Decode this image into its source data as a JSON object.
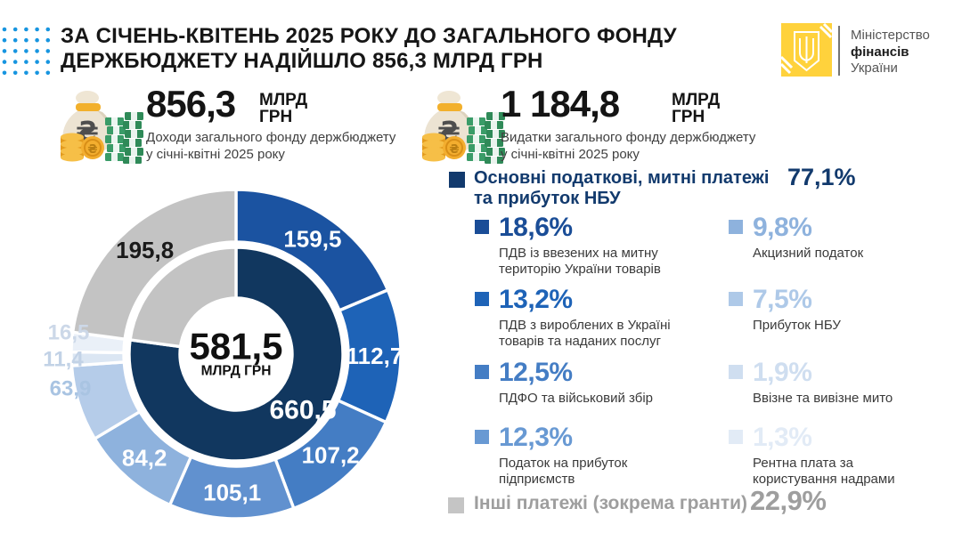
{
  "header": {
    "title_line1": "ЗА СІЧЕНЬ-КВІТЕНЬ 2025 РОКУ ДО ЗАГАЛЬНОГО ФОНДУ",
    "title_line2": "ДЕРЖБЮДЖЕТУ НАДІЙШЛО 856,3 МЛРД ГРН",
    "logo": {
      "line1": "Міністерство",
      "line2": "фінансів",
      "line3": "України",
      "emblem_color": "#ffd23c"
    }
  },
  "icons": {
    "stat_icon": "money-bag-coins",
    "logo_icon": "ukraine-trident-emblem",
    "decor_icon": "blue-dots-grid"
  },
  "decor": {
    "dots": {
      "rows": 5,
      "cols": 5,
      "step": 12.2,
      "radius": 2.3,
      "color": "#1795e0"
    }
  },
  "stats": [
    {
      "value": "856,3",
      "unit_line1": "МЛРД",
      "unit_line2": "ГРН",
      "desc_line1": "Доходи загального фонду держбюджету",
      "desc_line2": "у січні-квітні 2025 року"
    },
    {
      "value": "1 184,8",
      "unit_line1": "МЛРД",
      "unit_line2": "ГРН",
      "desc_line1": "Видатки загального фонду держбюджету",
      "desc_line2": "у січні-квітні 2025 року"
    }
  ],
  "chart_data": {
    "type": "donut",
    "unit": "млрд грн",
    "total": 856.3,
    "center": {
      "value": "581,5",
      "unit": "МЛРД ГРН"
    },
    "outer_ring": [
      {
        "name": "ПДВ із ввезених на митну територію України товарів",
        "value": 159.5,
        "label": "159,5",
        "color": "#1b53a1",
        "label_color": "#ffffff",
        "inside": true
      },
      {
        "name": "ПДВ з вироблених в Україні товарів та наданих послуг",
        "value": 112.7,
        "label": "112,7",
        "color": "#1e63b7",
        "label_color": "#ffffff",
        "inside": true
      },
      {
        "name": "ПДФО та військовий збір",
        "value": 107.2,
        "label": "107,2",
        "color": "#447dc4",
        "label_color": "#ffffff",
        "inside": true
      },
      {
        "name": "Податок на прибуток підприємств",
        "value": 105.1,
        "label": "105,1",
        "color": "#6191cf",
        "label_color": "#ffffff",
        "inside": true
      },
      {
        "name": "Акцизний податок",
        "value": 84.2,
        "label": "84,2",
        "color": "#8eb2dd",
        "label_color": "#ffffff",
        "inside": true
      },
      {
        "name": "Прибуток НБУ",
        "value": 63.9,
        "label": "63,9",
        "color": "#b5cce9",
        "label_color": "#a9c4e2",
        "inside": false,
        "label_pos": [
          39,
          242
        ]
      },
      {
        "name": "Рентна плата за користування надрами",
        "value": 11.4,
        "label": "11,4",
        "color": "#dbe6f3",
        "label_color": "#c2d2e6",
        "inside": false,
        "label_pos": [
          31,
          209
        ]
      },
      {
        "name": "Ввізне та вивізне мито",
        "value": 16.5,
        "label": "16,5",
        "color": "#eaf0f8",
        "label_color": "#ccd8e8",
        "inside": false,
        "label_pos": [
          37,
          179
        ]
      },
      {
        "name": "Інші платежі (зокрема гранти)",
        "value": 195.8,
        "label": "195,8",
        "color": "#c3c3c3",
        "label_color": "#1a1a1a",
        "inside": true
      }
    ],
    "inner_ring": [
      {
        "name": "Основні податкові, митні платежі та прибуток НБУ",
        "value": 660.5,
        "label": "660,5",
        "color": "#11375f",
        "label_color": "#ffffff",
        "label_pos": [
          300,
          266
        ]
      },
      {
        "name": "Інші платежі (зокрема гранти)",
        "value": 195.8,
        "label": "",
        "color": "#c3c3c3",
        "label_color": "",
        "label_pos": null
      }
    ],
    "legend_position": "right",
    "grid": false
  },
  "legend": {
    "header": {
      "label_line1": "Основні податкові, митні платежі",
      "label_line2": "та прибуток НБУ",
      "percent": "77,1%",
      "color": "#123a6d"
    },
    "items": [
      {
        "percent": "18,6%",
        "color": "#1a4d97",
        "desc_line1": "ПДВ із ввезених на митну",
        "desc_line2": "територію України товарів"
      },
      {
        "percent": "9,8%",
        "color": "#8eb2dd",
        "desc_line1": "Акцизний податок",
        "desc_line2": ""
      },
      {
        "percent": "13,2%",
        "color": "#1e63b7",
        "desc_line1": "ПДВ з вироблених в Україні",
        "desc_line2": "товарів та наданих послуг"
      },
      {
        "percent": "7,5%",
        "color": "#aec9e8",
        "desc_line1": "Прибуток НБУ",
        "desc_line2": ""
      },
      {
        "percent": "12,5%",
        "color": "#447dc4",
        "desc_line1": "ПДФО та військовий збір",
        "desc_line2": ""
      },
      {
        "percent": "1,9%",
        "color": "#cfdef0",
        "desc_line1": "Ввізне та вивізне мито",
        "desc_line2": ""
      },
      {
        "percent": "12,3%",
        "color": "#6899d3",
        "desc_line1": "Податок на прибуток",
        "desc_line2": "підприємств"
      },
      {
        "percent": "1,3%",
        "color": "#e2ebf6",
        "desc_line1": "Рентна плата за",
        "desc_line2": "користування надрами"
      }
    ],
    "footer": {
      "label": "Інші платежі (зокрема гранти)",
      "percent": "22,9%",
      "text_color": "#9e9e9e",
      "bullet_color": "#c5c5c5"
    }
  }
}
